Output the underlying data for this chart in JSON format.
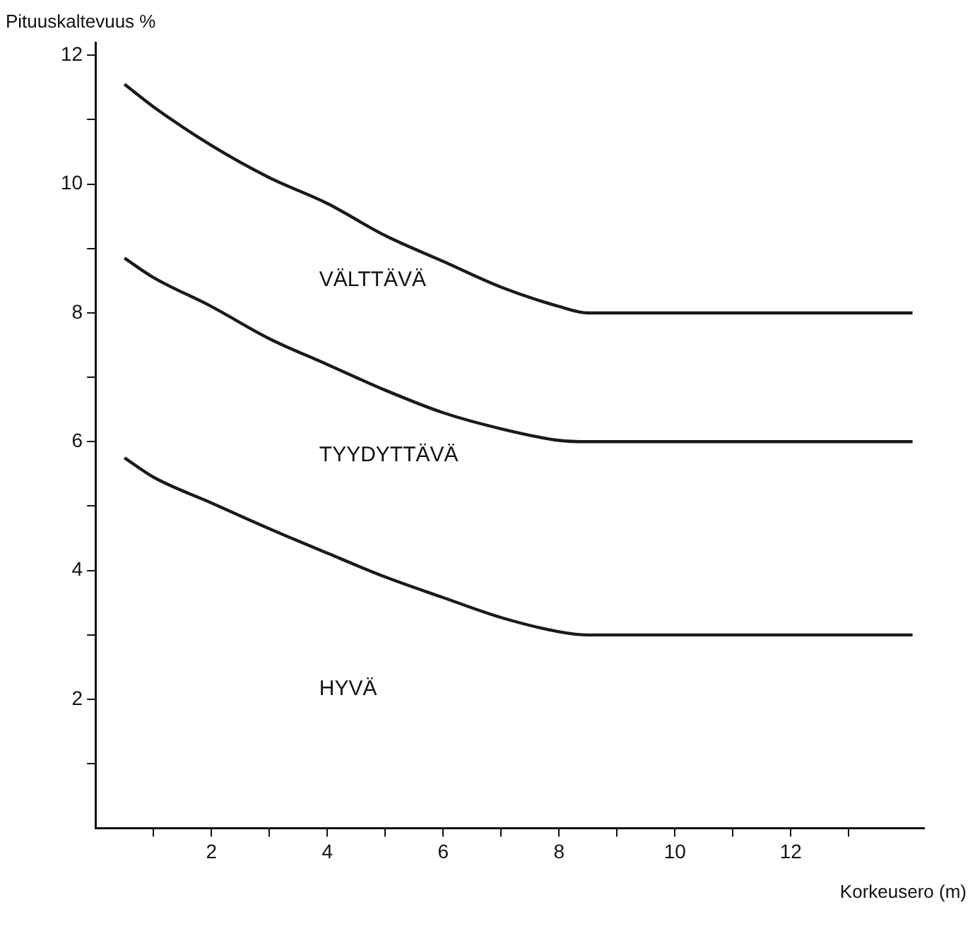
{
  "chart_data": {
    "type": "line",
    "xlabel": "Korkeusero (m)",
    "ylabel": "Pituuskaltevuus %",
    "series": [
      {
        "color": "#1a1a1a",
        "x": [
          0.5,
          1,
          2,
          3,
          4,
          5,
          6,
          7,
          8,
          8.5,
          10,
          12,
          14.1
        ],
        "values": [
          11.55,
          11.2,
          10.6,
          10.1,
          9.7,
          9.2,
          8.8,
          8.4,
          8.1,
          8.0,
          8.0,
          8.0,
          8.0
        ]
      },
      {
        "color": "#1a1a1a",
        "x": [
          0.5,
          1,
          2,
          3,
          4,
          5,
          6,
          7,
          8,
          8.5,
          10,
          12,
          14.1
        ],
        "values": [
          8.85,
          8.55,
          8.1,
          7.6,
          7.2,
          6.8,
          6.45,
          6.2,
          6.02,
          6.0,
          6.0,
          6.0,
          6.0
        ]
      },
      {
        "color": "#1a1a1a",
        "x": [
          0.5,
          1,
          2,
          3,
          4,
          5,
          6,
          7,
          8,
          8.5,
          10,
          12,
          14.1
        ],
        "values": [
          5.75,
          5.45,
          5.05,
          4.65,
          4.27,
          3.9,
          3.58,
          3.27,
          3.05,
          3.0,
          3.0,
          3.0,
          3.0
        ]
      }
    ],
    "annotations": [
      "VÄLTTÄVÄ",
      "TYYDYTTÄVÄ",
      "HYVÄ"
    ],
    "xlim": [
      0,
      14.3
    ],
    "ylim": [
      0,
      12.2
    ],
    "xticks": [
      {
        "value": 1,
        "label": null
      },
      2,
      {
        "value": 3,
        "label": null
      },
      4,
      {
        "value": 5,
        "label": null
      },
      6,
      {
        "value": 7,
        "label": null
      },
      8,
      {
        "value": 9,
        "label": null
      },
      10,
      {
        "value": 11,
        "label": null
      },
      12,
      {
        "value": 13,
        "label": null
      }
    ],
    "yticks": [
      {
        "value": 1,
        "label": null
      },
      2,
      {
        "value": 3,
        "label": null
      },
      4,
      {
        "value": 5,
        "label": null
      },
      6,
      {
        "value": 7,
        "label": null
      },
      8,
      {
        "value": 9,
        "label": null
      },
      10,
      {
        "value": 11,
        "label": null
      },
      12
    ],
    "grid": false,
    "legend": false,
    "marker": "none",
    "line_style": "solid"
  }
}
